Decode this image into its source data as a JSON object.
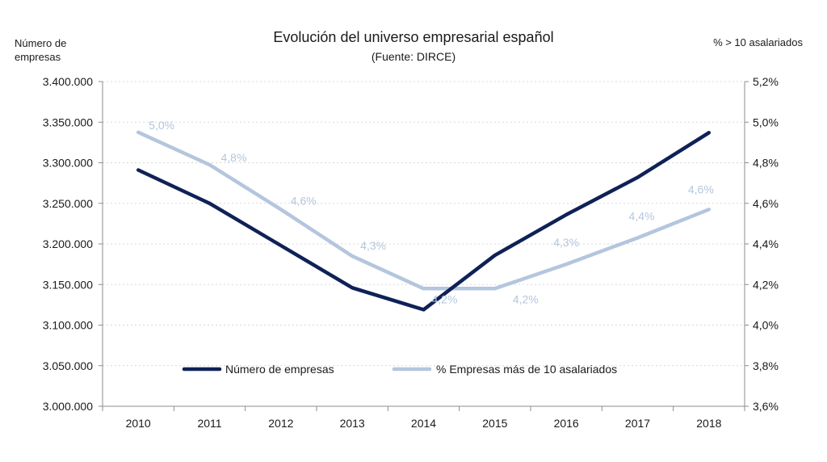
{
  "chart_data": {
    "type": "line",
    "title": "Evolución del universo empresarial español",
    "subtitle": "(Fuente: DIRCE)",
    "ylabel_left": "Número de empresas",
    "ylabel_right": "% > 10 asalariados",
    "categories": [
      "2010",
      "2011",
      "2012",
      "2013",
      "2014",
      "2015",
      "2016",
      "2017",
      "2018"
    ],
    "y_left": {
      "lim": [
        3000000,
        3400000
      ],
      "ticks": [
        "3.000.000",
        "3.050.000",
        "3.100.000",
        "3.150.000",
        "3.200.000",
        "3.250.000",
        "3.300.000",
        "3.350.000",
        "3.400.000"
      ]
    },
    "y_right": {
      "lim": [
        3.6,
        5.2
      ],
      "ticks": [
        "3,6%",
        "3,8%",
        "4,0%",
        "4,2%",
        "4,4%",
        "4,6%",
        "4,8%",
        "5,0%",
        "5,2%"
      ]
    },
    "series": [
      {
        "name": "Número de empresas",
        "axis": "left",
        "color": "#0f2156",
        "values": [
          3291000,
          3250000,
          3198000,
          3146000,
          3119000,
          3186000,
          3236000,
          3282000,
          3337000
        ]
      },
      {
        "name": "% Empresas más de 10 asalariados",
        "axis": "right",
        "color": "#b4c6dd",
        "values": [
          4.95,
          4.79,
          4.57,
          4.34,
          4.18,
          4.18,
          4.3,
          4.43,
          4.57
        ],
        "labels": [
          "5,0%",
          "4,8%",
          "4,6%",
          "4,3%",
          "4,2%",
          "4,2%",
          "4,3%",
          "4,4%",
          "4,6%"
        ]
      }
    ],
    "grid": "horizontal dotted",
    "legend": "bottom-center, inside plot"
  }
}
